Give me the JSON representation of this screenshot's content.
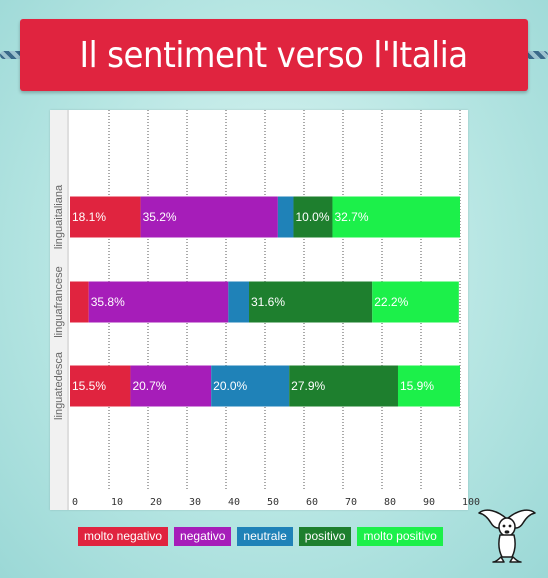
{
  "title": "Il sentiment verso l'Italia",
  "colors": {
    "molto_negativo": "#e0243f",
    "negativo": "#a61db9",
    "neutrale": "#1f82b8",
    "positivo": "#1e7f2e",
    "molto_positivo": "#1cf04a"
  },
  "legend": [
    {
      "label": "molto negativo",
      "color": "#e0243f"
    },
    {
      "label": "negativo",
      "color": "#a61db9"
    },
    {
      "label": "neutrale",
      "color": "#1f82b8"
    },
    {
      "label": "positivo",
      "color": "#1e7f2e"
    },
    {
      "label": "molto positivo",
      "color": "#1cf04a"
    }
  ],
  "chart_data": {
    "type": "bar",
    "orientation": "horizontal",
    "stacked": true,
    "title": "Il sentiment verso l'Italia",
    "xlim": [
      0,
      100
    ],
    "x_ticks": [
      0,
      10,
      20,
      30,
      40,
      50,
      60,
      70,
      80,
      90,
      100
    ],
    "grid": "vertical-dotted",
    "legend_position": "bottom",
    "categories": [
      "linguaitaliana",
      "linguafrancese",
      "linguatedesca"
    ],
    "series": [
      {
        "name": "molto negativo",
        "color": "#e0243f",
        "values": [
          18.1,
          4.8,
          15.5
        ],
        "labels": [
          "18.1%",
          "",
          "15.5%"
        ]
      },
      {
        "name": "negativo",
        "color": "#a61db9",
        "values": [
          35.2,
          35.8,
          20.7
        ],
        "labels": [
          "35.2%",
          "35.8%",
          "20.7%"
        ]
      },
      {
        "name": "neutrale",
        "color": "#1f82b8",
        "values": [
          4.0,
          5.3,
          20.0
        ],
        "labels": [
          "",
          "",
          "20.0%"
        ]
      },
      {
        "name": "positivo",
        "color": "#1e7f2e",
        "values": [
          10.0,
          31.6,
          27.9
        ],
        "labels": [
          "10.0%",
          "31.6%",
          "27.9%"
        ]
      },
      {
        "name": "molto positivo",
        "color": "#1cf04a",
        "values": [
          32.7,
          22.2,
          15.9
        ],
        "labels": [
          "32.7%",
          "22.2%",
          "15.9%"
        ]
      }
    ]
  }
}
